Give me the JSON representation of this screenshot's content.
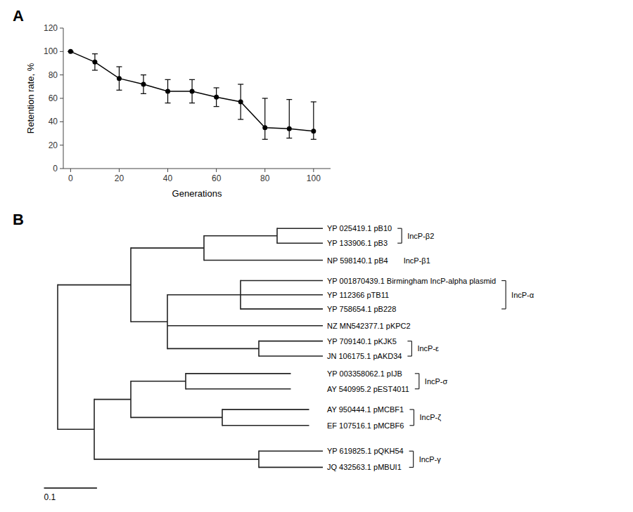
{
  "chart_data": [
    {
      "type": "line",
      "title": "A",
      "x": [
        0,
        10,
        20,
        30,
        40,
        50,
        60,
        70,
        80,
        90,
        100
      ],
      "values": [
        100,
        91,
        77,
        72,
        66,
        66,
        61,
        57,
        35,
        34,
        32
      ],
      "yerr_low": [
        0,
        7,
        10,
        8,
        10,
        10,
        8,
        15,
        10,
        8,
        7
      ],
      "yerr_high": [
        0,
        7,
        10,
        8,
        10,
        10,
        8,
        15,
        25,
        25,
        25
      ],
      "color": "black",
      "marker": "circle",
      "xlabel": "Generations",
      "ylabel": "Retention rate, %",
      "xlim": [
        -3,
        107
      ],
      "ylim": [
        0,
        120
      ],
      "xticks": [
        0,
        20,
        40,
        60,
        80,
        100
      ],
      "yticks": [
        0,
        20,
        40,
        60,
        80,
        100,
        120
      ]
    },
    {
      "type": "tree",
      "title": "B",
      "leaves": [
        "YP 025419.1 pB10",
        "YP 133906.1 pB3",
        "NP 598140.1 pB4",
        "YP 001870439.1 Birmingham IncP-alpha plasmid",
        "YP 112366 pTB11",
        "YP 758654.1 pB228",
        "NZ MN542377.1 pKPC2",
        "YP 709140.1 pKJK5",
        "JN 106175.1 pAKD34",
        "YP 003358062.1 pIJB",
        "AY 540995.2 pEST4011",
        "AY 950444.1 pMCBF1",
        "EF 107516.1 pMCBF6",
        "YP 619825.1 pQKH54",
        "JQ 432563.1 pMBUI1"
      ],
      "groups": [
        {
          "text": "IncP-β2",
          "bracket": true
        },
        {
          "text": "IncP-β1",
          "bracket": false
        },
        {
          "text": "IncP-α",
          "bracket": true
        },
        {
          "text": "IncP-ε",
          "bracket": true
        },
        {
          "text": "IncP-σ",
          "bracket": true
        },
        {
          "text": "IncP-ζ",
          "bracket": true
        },
        {
          "text": "IncP-γ",
          "bracket": true
        }
      ],
      "scale_bar": 0.1
    }
  ]
}
